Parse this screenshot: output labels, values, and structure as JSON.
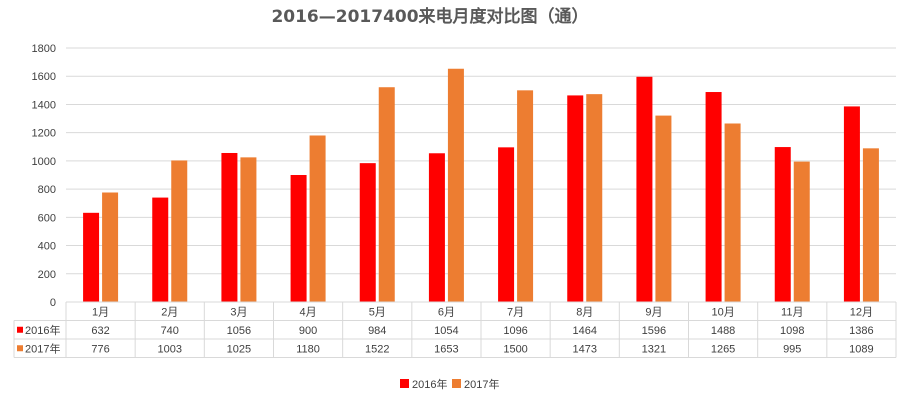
{
  "chart_data": {
    "type": "bar",
    "title": "2016—2017400来电月度对比图（通）",
    "categories": [
      "1月",
      "2月",
      "3月",
      "4月",
      "5月",
      "6月",
      "7月",
      "8月",
      "9月",
      "10月",
      "11月",
      "12月"
    ],
    "series": [
      {
        "name": "2016年",
        "color": "#ff0000",
        "values": [
          632,
          740,
          1056,
          900,
          984,
          1054,
          1096,
          1464,
          1596,
          1488,
          1098,
          1386
        ]
      },
      {
        "name": "2017年",
        "color": "#ed7d31",
        "values": [
          776,
          1003,
          1025,
          1180,
          1522,
          1653,
          1500,
          1473,
          1321,
          1265,
          995,
          1089
        ]
      }
    ],
    "ylim": [
      0,
      1800
    ],
    "yticks": [
      0,
      200,
      400,
      600,
      800,
      1000,
      1200,
      1400,
      1600,
      1800
    ],
    "grid": true,
    "data_table": true,
    "legend_position": "bottom"
  }
}
